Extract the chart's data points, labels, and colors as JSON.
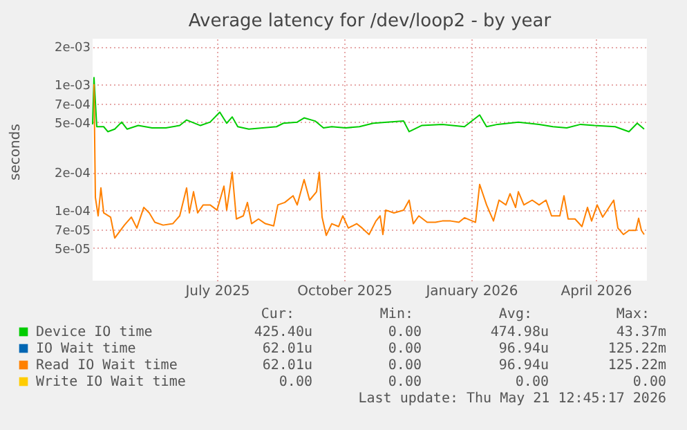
{
  "chart_data": {
    "type": "line",
    "title": "Average latency for /dev/loop2 - by year",
    "ylabel": "seconds",
    "log": "y",
    "grid": true,
    "legend": "bottom",
    "marker": "none",
    "line_style": "solid",
    "xlim": [
      "2025-04-16",
      "2026-05-22"
    ],
    "xticks": [
      {
        "value": "2025-07-15",
        "label": "July 2025"
      },
      {
        "value": "2025-10-15",
        "label": "October 2025"
      },
      {
        "value": "2026-01-15",
        "label": "January 2026"
      },
      {
        "value": "2026-04-15",
        "label": "April 2026"
      }
    ],
    "ylim": [
      2.75e-05,
      0.0023
    ],
    "yticks": [
      {
        "value": 5e-05,
        "label": "5e-05"
      },
      {
        "value": 7e-05,
        "label": "7e-05"
      },
      {
        "value": 0.0001,
        "label": "1e-04"
      },
      {
        "value": 0.0002,
        "label": "2e-04"
      },
      {
        "value": 0.0005,
        "label": "5e-04"
      },
      {
        "value": 0.0007,
        "label": "7e-04"
      },
      {
        "value": 0.001,
        "label": "1e-03"
      },
      {
        "value": 0.002,
        "label": "2e-03"
      }
    ],
    "x": [
      "2025-04-17",
      "2025-04-18",
      "2025-04-20",
      "2025-04-22",
      "2025-04-24",
      "2025-04-29",
      "2025-05-02",
      "2025-05-09",
      "2025-05-14",
      "2025-05-18",
      "2025-05-23",
      "2025-05-27",
      "2025-05-31",
      "2025-06-06",
      "2025-06-13",
      "2025-06-18",
      "2025-06-23",
      "2025-06-25",
      "2025-06-28",
      "2025-07-01",
      "2025-07-05",
      "2025-07-10",
      "2025-07-15",
      "2025-07-20",
      "2025-07-22",
      "2025-07-26",
      "2025-07-29",
      "2025-08-03",
      "2025-08-06",
      "2025-08-09",
      "2025-08-14",
      "2025-08-19",
      "2025-08-25",
      "2025-08-28",
      "2025-09-02",
      "2025-09-08",
      "2025-09-11",
      "2025-09-16",
      "2025-09-20",
      "2025-09-25",
      "2025-09-27",
      "2025-09-29",
      "2025-10-02",
      "2025-10-06",
      "2025-10-11",
      "2025-10-14",
      "2025-10-18",
      "2025-10-24",
      "2025-10-28",
      "2025-11-02",
      "2025-11-07",
      "2025-11-10",
      "2025-11-12",
      "2025-11-14",
      "2025-11-20",
      "2025-11-27",
      "2025-12-01",
      "2025-12-04",
      "2025-12-08",
      "2025-12-14",
      "2025-12-20",
      "2025-12-25",
      "2025-12-31",
      "2026-01-06",
      "2026-01-10",
      "2026-01-18",
      "2026-01-21",
      "2026-01-26",
      "2026-01-31",
      "2026-02-04",
      "2026-02-09",
      "2026-02-12",
      "2026-02-16",
      "2026-02-18",
      "2026-02-22",
      "2026-02-28",
      "2026-03-05",
      "2026-03-10",
      "2026-03-14",
      "2026-03-20",
      "2026-03-23",
      "2026-03-26",
      "2026-03-31",
      "2026-04-05",
      "2026-04-09",
      "2026-04-12",
      "2026-04-16",
      "2026-04-20",
      "2026-04-28",
      "2026-05-01",
      "2026-05-05",
      "2026-05-09",
      "2026-05-14",
      "2026-05-16",
      "2026-05-18",
      "2026-05-20"
    ],
    "series": [
      {
        "name": "Device IO time",
        "color": "#00cc00",
        "x": [
          "2025-04-16",
          "2025-04-17",
          "2025-04-19",
          "2025-04-24",
          "2025-04-27",
          "2025-05-02",
          "2025-05-07",
          "2025-05-11",
          "2025-05-19",
          "2025-05-29",
          "2025-06-08",
          "2025-06-18",
          "2025-06-23",
          "2025-07-03",
          "2025-07-10",
          "2025-07-17",
          "2025-07-22",
          "2025-07-26",
          "2025-07-30",
          "2025-08-07",
          "2025-08-17",
          "2025-08-27",
          "2025-09-01",
          "2025-09-11",
          "2025-09-16",
          "2025-09-24",
          "2025-09-30",
          "2025-10-06",
          "2025-10-16",
          "2025-10-26",
          "2025-11-05",
          "2025-11-15",
          "2025-11-27",
          "2025-12-01",
          "2025-12-10",
          "2025-12-25",
          "2026-01-10",
          "2026-01-21",
          "2026-01-26",
          "2026-02-03",
          "2026-02-18",
          "2026-03-05",
          "2026-03-15",
          "2026-03-25",
          "2026-04-04",
          "2026-04-14",
          "2026-04-29",
          "2026-05-09",
          "2026-05-15",
          "2026-05-20"
        ],
        "values": [
          0.00048,
          0.00113,
          0.00046,
          0.00046,
          0.00042,
          0.00044,
          0.0005,
          0.00044,
          0.00047,
          0.00045,
          0.00045,
          0.00047,
          0.00052,
          0.00047,
          0.0005,
          0.0006,
          0.00049,
          0.00055,
          0.00046,
          0.00044,
          0.00045,
          0.00046,
          0.00049,
          0.0005,
          0.00054,
          0.00051,
          0.00045,
          0.00046,
          0.00045,
          0.00046,
          0.00049,
          0.0005,
          0.00051,
          0.00042,
          0.00047,
          0.00048,
          0.00046,
          0.00057,
          0.00046,
          0.00048,
          0.0005,
          0.00048,
          0.00046,
          0.00045,
          0.00048,
          0.00047,
          0.00046,
          0.00042,
          0.00049,
          0.00044
        ]
      },
      {
        "name": "IO Wait time",
        "color": "#0066b3",
        "values": [
          null,
          null,
          null,
          null,
          null,
          null,
          null,
          null,
          null,
          null,
          null,
          null,
          null,
          null,
          null,
          null,
          null,
          null,
          null,
          null,
          null,
          null,
          null,
          null,
          null,
          null,
          null,
          null,
          null,
          null,
          null,
          null,
          null,
          null,
          null,
          null,
          null,
          null,
          null,
          null,
          null,
          null,
          null,
          null,
          null,
          null,
          null,
          null,
          null,
          null,
          null,
          null,
          null,
          null,
          null,
          null,
          null,
          null,
          null,
          null,
          null,
          null,
          null,
          null,
          null,
          null,
          null,
          null,
          null,
          null,
          null,
          null,
          null,
          null,
          null,
          null,
          null,
          null,
          null,
          null,
          null,
          null,
          null,
          null,
          null,
          null,
          null,
          null,
          null,
          null,
          null,
          null,
          null,
          null,
          null,
          null
        ]
      },
      {
        "name": "Read IO Wait time",
        "color": "#ff8000",
        "values": [
          0.001,
          0.000126,
          9e-05,
          0.00015,
          9.5e-05,
          8.8e-05,
          6e-05,
          7.6e-05,
          8.8e-05,
          7.2e-05,
          0.000105,
          9.5e-05,
          8e-05,
          7.6e-05,
          7.8e-05,
          9e-05,
          0.00015,
          9.5e-05,
          0.00014,
          9.5e-05,
          0.00011,
          0.00011,
          0.0001,
          0.000155,
          0.0001,
          0.0002,
          8.5e-05,
          9e-05,
          0.000115,
          7.8e-05,
          8.5e-05,
          7.8e-05,
          7.5e-05,
          0.00011,
          0.000115,
          0.00013,
          0.00011,
          0.000175,
          0.00012,
          0.00014,
          0.0002,
          8.8e-05,
          6.3e-05,
          7.8e-05,
          7.4e-05,
          9e-05,
          7.2e-05,
          7.8e-05,
          7.2e-05,
          6.4e-05,
          8.2e-05,
          9e-05,
          6.4e-05,
          0.0001,
          9.5e-05,
          0.0001,
          0.00012,
          7.8e-05,
          9e-05,
          8e-05,
          8e-05,
          8.2e-05,
          8.2e-05,
          8e-05,
          8.7e-05,
          8e-05,
          0.00016,
          0.00011,
          8.2e-05,
          0.00012,
          0.00011,
          0.000135,
          0.000105,
          0.00014,
          0.00011,
          0.00012,
          0.00011,
          0.00012,
          9e-05,
          9e-05,
          0.00013,
          8.5e-05,
          8.5e-05,
          7.4e-05,
          0.000105,
          8.2e-05,
          0.00011,
          8.8e-05,
          0.00012,
          7.2e-05,
          6.4e-05,
          6.9e-05,
          6.9e-05,
          8.6e-05,
          6.9e-05,
          6.4e-05
        ]
      },
      {
        "name": "Write IO Wait time",
        "color": "#ffcc00",
        "values": [
          null,
          null,
          null,
          null,
          null,
          null,
          null,
          null,
          null,
          null,
          null,
          null,
          null,
          null,
          null,
          null,
          null,
          null,
          null,
          null,
          null,
          null,
          null,
          null,
          null,
          null,
          null,
          null,
          null,
          null,
          null,
          null,
          null,
          null,
          null,
          null,
          null,
          null,
          null,
          null,
          null,
          null,
          null,
          null,
          null,
          null,
          null,
          null,
          null,
          null,
          null,
          null,
          null,
          null,
          null,
          null,
          null,
          null,
          null,
          null,
          null,
          null,
          null,
          null,
          null,
          null,
          null,
          null,
          null,
          null,
          null,
          null,
          null,
          null,
          null,
          null,
          null,
          null,
          null,
          null,
          null,
          null,
          null,
          null,
          null,
          null,
          null,
          null,
          null,
          null,
          null,
          null,
          null,
          null,
          null,
          null
        ]
      }
    ],
    "annotations": [
      "Cur:",
      "Min:",
      "Avg:",
      "Max:",
      "425.40u",
      "0.00",
      "474.98u",
      "43.37m",
      "62.01u",
      "0.00",
      "96.94u",
      "125.22m",
      "62.01u",
      "0.00",
      "96.94u",
      "125.22m",
      "0.00",
      "0.00",
      "0.00",
      "0.00",
      "Last update: Thu May 21 12:45:17 2026"
    ]
  }
}
